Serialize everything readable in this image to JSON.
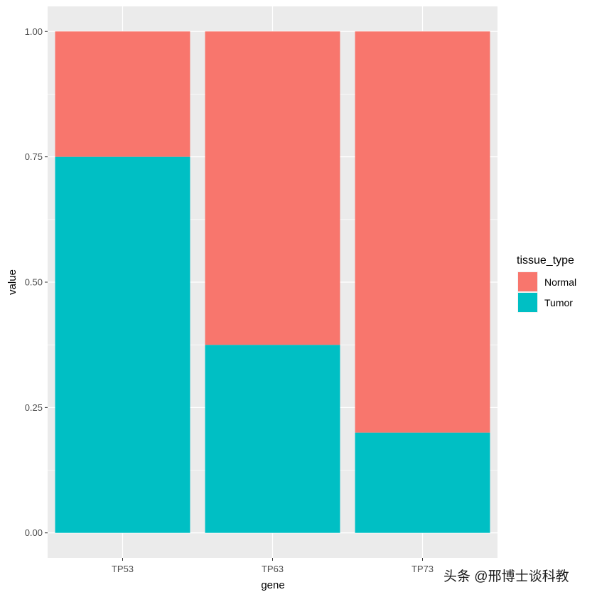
{
  "chart_data": {
    "type": "bar",
    "stacked": true,
    "categories": [
      "TP53",
      "TP63",
      "TP73"
    ],
    "series": [
      {
        "name": "Tumor",
        "values": [
          0.75,
          0.375,
          0.2
        ],
        "color": "#00BFC4"
      },
      {
        "name": "Normal",
        "values": [
          0.25,
          0.625,
          0.8
        ],
        "color": "#F8766D"
      }
    ],
    "xlabel": "gene",
    "ylabel": "value",
    "ylim": [
      -0.05,
      1.05
    ],
    "yticks": [
      0,
      0.25,
      0.5,
      0.75,
      1.0
    ],
    "ytick_labels": [
      "0.00",
      "0.25",
      "0.50",
      "0.75",
      "1.00"
    ],
    "grid": true,
    "legend": {
      "title": "tissue_type",
      "position": "right",
      "entries": [
        {
          "label": "Normal",
          "color": "#F8766D"
        },
        {
          "label": "Tumor",
          "color": "#00BFC4"
        }
      ]
    }
  },
  "watermark": "头条 @邢博士谈科教"
}
